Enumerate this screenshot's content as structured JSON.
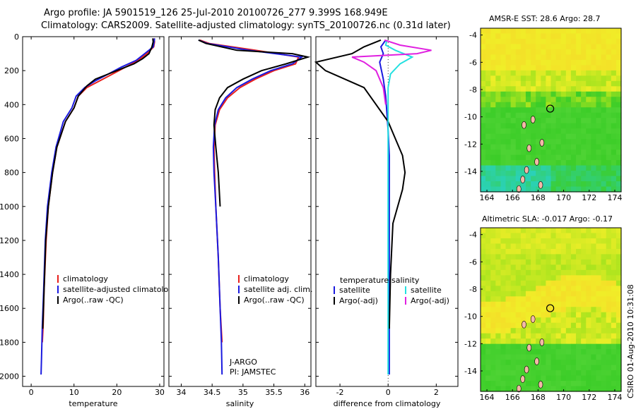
{
  "titles": {
    "line1": "Argo profile: JA 5901519_126 25-Jul-2010 20100726_277 9.399S 168.949E",
    "line2": "Climatology: CARS2009. Satellite-adjusted climatology: synTS_20100726.nc (0.31d later)",
    "map1": "AMSR-E SST: 28.6 Argo: 28.7",
    "map2": "Altimetric SLA: -0.017 Argo: -0.17",
    "credit": "CSIRO 01-Aug-2010 10:31:08"
  },
  "colors": {
    "climatology": "#e8201c",
    "satellite": "#1a1adf",
    "argo": "#000000",
    "sat_diff_s": "#22e0e0",
    "argo_diff_s": "#e020e0"
  },
  "chart_data": [
    {
      "type": "line",
      "panel": "temperature",
      "xlabel": "temperature",
      "ylabel": "",
      "xlim": [
        -2,
        31
      ],
      "ylim": [
        2060,
        0
      ],
      "y_reversed": true,
      "xticks": [
        "0",
        "10",
        "20",
        "30"
      ],
      "xtick_values": [
        0,
        10,
        20,
        30
      ],
      "yticks": [
        "0",
        "200",
        "400",
        "600",
        "800",
        "1000",
        "1200",
        "1400",
        "1600",
        "1800",
        "2000"
      ],
      "ytick_values": [
        0,
        200,
        400,
        600,
        800,
        1000,
        1200,
        1400,
        1600,
        1800,
        2000
      ],
      "legend": [
        "climatology",
        "satellite-adjusted climatology",
        "Argo(..raw -QC)"
      ],
      "series": [
        {
          "name": "climatology",
          "color": "#e8201c",
          "x": [
            28.7,
            28.8,
            28.6,
            27,
            25,
            22,
            19,
            16,
            13,
            11,
            10,
            8,
            6,
            5,
            4,
            3.5,
            3,
            2.8,
            2.6
          ],
          "y": [
            10,
            30,
            60,
            100,
            140,
            180,
            220,
            260,
            300,
            350,
            420,
            500,
            650,
            800,
            1000,
            1200,
            1500,
            1700,
            1800
          ]
        },
        {
          "name": "satellite",
          "color": "#1a1adf",
          "x": [
            28.8,
            28.7,
            28.5,
            26.5,
            24.5,
            21,
            18,
            15,
            12.5,
            10.5,
            9.5,
            7.5,
            5.8,
            4.8,
            3.8,
            3.3,
            2.9,
            2.6,
            2.4,
            2.3
          ],
          "y": [
            10,
            30,
            60,
            100,
            140,
            180,
            220,
            260,
            300,
            350,
            420,
            500,
            650,
            800,
            1000,
            1200,
            1500,
            1700,
            1900,
            1990
          ]
        },
        {
          "name": "Argo",
          "color": "#000000",
          "x": [
            28.4,
            28.5,
            28.2,
            27.5,
            26,
            24,
            21,
            18,
            15,
            13,
            11,
            10,
            8,
            6,
            5,
            4,
            3.4,
            3,
            2.7
          ],
          "y": [
            10,
            30,
            60,
            100,
            130,
            160,
            190,
            220,
            250,
            290,
            350,
            420,
            500,
            650,
            800,
            1000,
            1200,
            1500,
            1720
          ]
        }
      ]
    },
    {
      "type": "line",
      "panel": "salinity",
      "xlabel": "salinity",
      "xlim": [
        33.8,
        36.1
      ],
      "ylim": [
        2060,
        0
      ],
      "y_reversed": true,
      "xticks": [
        "34",
        "34.5",
        "35",
        "35.5",
        "36"
      ],
      "xtick_values": [
        34,
        34.5,
        35,
        35.5,
        36
      ],
      "legend": [
        "climatology",
        "satellite adj. clim.",
        "Argo(..raw -QC)"
      ],
      "annotations": [
        "J-ARGO",
        "PI: JAMSTEC"
      ],
      "series": [
        {
          "name": "climatology",
          "color": "#e8201c",
          "x": [
            34.3,
            34.45,
            35.2,
            35.9,
            35.85,
            35.5,
            35.2,
            34.95,
            34.75,
            34.62,
            34.55,
            34.53,
            34.54,
            34.56,
            34.6,
            34.63,
            34.66
          ],
          "y": [
            20,
            40,
            80,
            120,
            160,
            200,
            250,
            300,
            360,
            430,
            520,
            650,
            800,
            1000,
            1300,
            1600,
            1800
          ]
        },
        {
          "name": "satellite",
          "color": "#1a1adf",
          "x": [
            34.28,
            34.42,
            35.1,
            35.95,
            35.8,
            35.45,
            35.15,
            34.9,
            34.72,
            34.6,
            34.54,
            34.52,
            34.53,
            34.56,
            34.6,
            34.63,
            34.65,
            34.66
          ],
          "y": [
            20,
            40,
            80,
            120,
            160,
            200,
            250,
            300,
            360,
            430,
            520,
            650,
            800,
            1000,
            1300,
            1600,
            1800,
            1990
          ]
        },
        {
          "name": "Argo",
          "color": "#000000",
          "x": [
            34.28,
            34.4,
            34.9,
            35.8,
            36.05,
            35.7,
            35.3,
            35.0,
            34.75,
            34.62,
            34.55,
            34.53,
            34.56,
            34.6,
            34.63
          ],
          "y": [
            20,
            40,
            80,
            100,
            120,
            160,
            200,
            250,
            300,
            360,
            430,
            520,
            650,
            800,
            1000
          ]
        }
      ]
    },
    {
      "type": "line",
      "panel": "difference",
      "xlabel": "difference from climatology",
      "xlim": [
        -3,
        2.9
      ],
      "ylim": [
        2060,
        0
      ],
      "y_reversed": true,
      "xticks": [
        "-2",
        "0",
        "2"
      ],
      "xtick_values": [
        -2,
        0,
        2
      ],
      "legend_left_title": "temperature",
      "legend_right_title": "salinity",
      "legend": [
        "satellite",
        "Argo(-adj)",
        "satellite",
        "Argo(-adj)"
      ],
      "series": [
        {
          "name": "T satellite",
          "color": "#1a1adf",
          "x": [
            -0.1,
            -0.3,
            -0.2,
            -0.35,
            -0.2,
            -0.1,
            -0.05,
            0.0,
            0.05,
            0.05,
            0.05,
            0.05,
            0.05
          ],
          "y": [
            20,
            60,
            100,
            150,
            250,
            350,
            450,
            550,
            700,
            900,
            1200,
            1600,
            1990
          ]
        },
        {
          "name": "T Argo",
          "color": "#000000",
          "x": [
            -0.3,
            -1.0,
            -1.5,
            -3.0,
            -2.6,
            -1.8,
            -1.0,
            -0.5,
            0.0,
            0.3,
            0.6,
            0.7,
            0.6,
            0.2,
            0.1,
            0.05
          ],
          "y": [
            20,
            60,
            100,
            150,
            200,
            250,
            300,
            400,
            500,
            600,
            700,
            800,
            900,
            1100,
            1400,
            1720
          ]
        },
        {
          "name": "S satellite",
          "color": "#22e0e0",
          "x": [
            -0.05,
            -0.1,
            0.3,
            1.0,
            0.5,
            0.1,
            0.0,
            0.0,
            0.0,
            0.0,
            0.0,
            0.0
          ],
          "y": [
            20,
            50,
            80,
            120,
            160,
            220,
            300,
            500,
            800,
            1200,
            1600,
            1990
          ]
        },
        {
          "name": "S Argo",
          "color": "#e020e0",
          "x": [
            -0.15,
            0.5,
            1.8,
            1.2,
            -1.5,
            -1.0,
            -0.5,
            -0.2,
            -0.1
          ],
          "y": [
            20,
            50,
            80,
            100,
            120,
            150,
            200,
            300,
            400
          ]
        }
      ]
    },
    {
      "type": "heatmap",
      "panel": "AMSR-E SST map",
      "title": "AMSR-E SST: 28.6 Argo: 28.7",
      "xlim": [
        163.5,
        174.5
      ],
      "ylim": [
        -15.5,
        -3.5
      ],
      "xticks": [
        "164",
        "166",
        "168",
        "170",
        "172",
        "174"
      ],
      "xtick_values": [
        164,
        166,
        168,
        170,
        172,
        174
      ],
      "yticks": [
        "-4",
        "-6",
        "-8",
        "-10",
        "-12",
        "-14"
      ],
      "ytick_values": [
        -4,
        -6,
        -8,
        -10,
        -12,
        -14
      ],
      "marker": {
        "lon": 168.95,
        "lat": -9.4
      }
    },
    {
      "type": "heatmap",
      "panel": "Altimetric SLA map",
      "title": "Altimetric SLA: -0.017 Argo: -0.17",
      "xlim": [
        163.5,
        174.5
      ],
      "ylim": [
        -15.5,
        -3.5
      ],
      "xticks": [
        "164",
        "166",
        "168",
        "170",
        "172",
        "174"
      ],
      "xtick_values": [
        164,
        166,
        168,
        170,
        172,
        174
      ],
      "yticks": [
        "-4",
        "-6",
        "-8",
        "-10",
        "-12",
        "-14"
      ],
      "ytick_values": [
        -4,
        -6,
        -8,
        -10,
        -12,
        -14
      ],
      "marker": {
        "lon": 168.95,
        "lat": -9.4
      }
    }
  ]
}
